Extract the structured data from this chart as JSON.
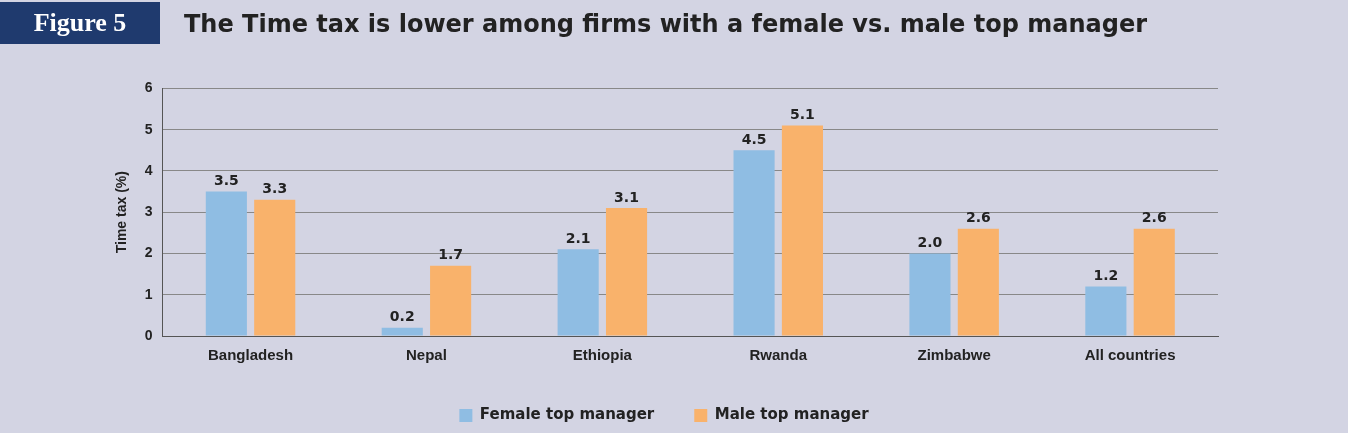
{
  "chart_data": {
    "type": "bar",
    "title": "The Time tax is lower among firms with a female vs. male top manager",
    "annotations": [
      "Figure 5"
    ],
    "ylabel": "Time tax (%)",
    "categories": [
      "Bangladesh",
      "Nepal",
      "Ethiopia",
      "Rwanda",
      "Zimbabwe",
      "All countries"
    ],
    "series": [
      {
        "name": "Female top manager",
        "color": "#8fbde3",
        "values": [
          3.5,
          0.2,
          2.1,
          4.5,
          2.0,
          1.2
        ],
        "value_labels": [
          "3.5",
          "0.2",
          "2.1",
          "4.5",
          "2.0",
          "1.2"
        ]
      },
      {
        "name": "Male top manager",
        "color": "#f9b26b",
        "values": [
          3.3,
          1.7,
          3.1,
          5.1,
          2.6,
          2.6
        ],
        "value_labels": [
          "3.3",
          "1.7",
          "3.1",
          "5.1",
          "2.6",
          "2.6"
        ]
      }
    ],
    "ylim": [
      0,
      6
    ],
    "yticks": [
      0,
      1,
      2,
      3,
      4,
      5,
      6
    ],
    "grid": "y",
    "legend": "bottom"
  }
}
